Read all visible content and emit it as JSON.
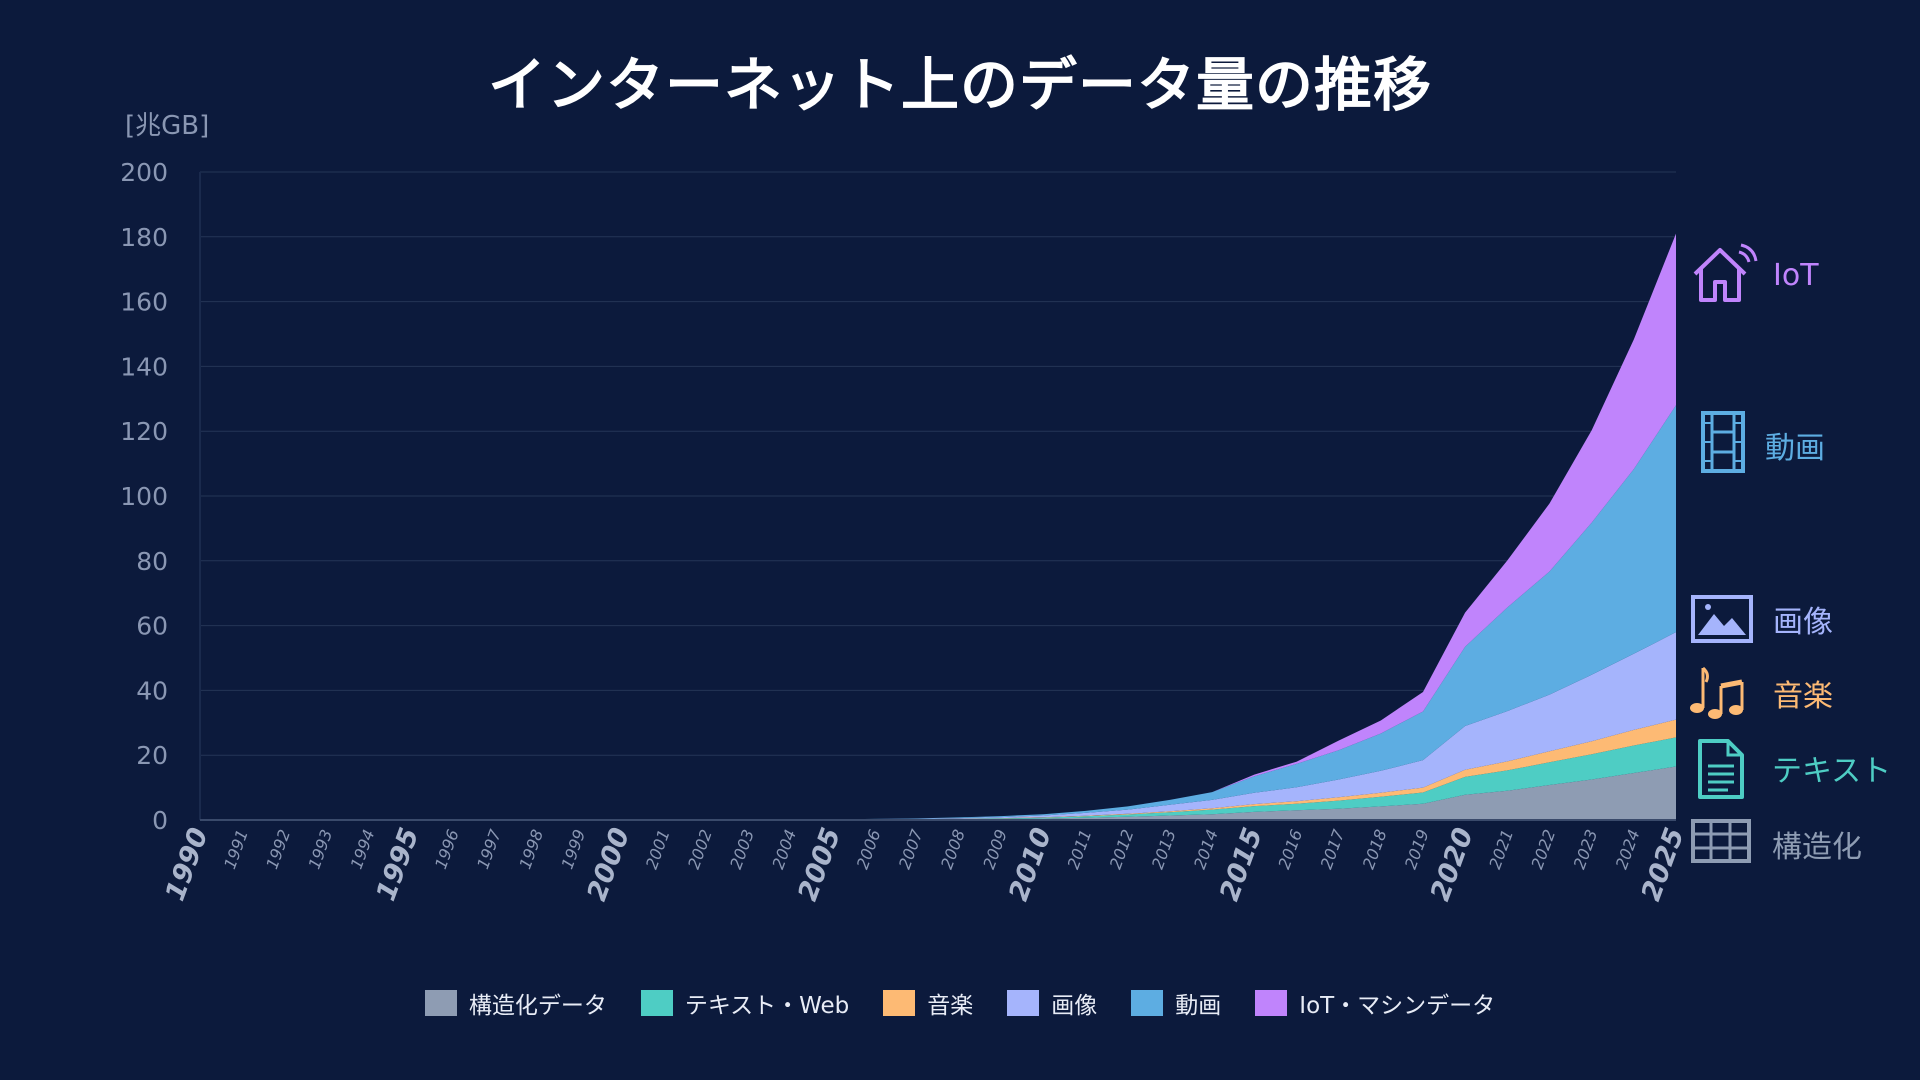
{
  "chart_data": {
    "type": "area",
    "stacked": true,
    "title": "インターネット上のデータ量の推移",
    "ylabel": "[兆GB]",
    "xlabel": "",
    "ylim": [
      0,
      200
    ],
    "yticks": [
      "0",
      "20",
      "40",
      "60",
      "80",
      "100",
      "120",
      "140",
      "160",
      "180",
      "200"
    ],
    "grid": true,
    "x": [
      "1990",
      "1991",
      "1992",
      "1993",
      "1994",
      "1995",
      "1996",
      "1997",
      "1998",
      "1999",
      "2000",
      "2001",
      "2002",
      "2003",
      "2004",
      "2005",
      "2006",
      "2007",
      "2008",
      "2009",
      "2010",
      "2011",
      "2012",
      "2013",
      "2014",
      "2015",
      "2016",
      "2017",
      "2018",
      "2019",
      "2020",
      "2021",
      "2022",
      "2023",
      "2024",
      "2025"
    ],
    "major_x": [
      "1990",
      "1995",
      "2000",
      "2005",
      "2010",
      "2015",
      "2020",
      "2025"
    ],
    "legend_position": "bottom",
    "series": [
      {
        "name": "構造化データ",
        "color": "#8e9cb3",
        "values": [
          0,
          0,
          0,
          0,
          0,
          0,
          0,
          0,
          0,
          0,
          0,
          0,
          0,
          0,
          0.05,
          0.08,
          0.1,
          0.15,
          0.2,
          0.3,
          0.45,
          0.7,
          1.0,
          1.4,
          1.8,
          2.5,
          3.0,
          3.5,
          4.2,
          5.0,
          7.8,
          9.0,
          10.8,
          12.5,
          14.5,
          16.5
        ]
      },
      {
        "name": "テキスト・Web",
        "color": "#4ecdc4",
        "values": [
          0,
          0,
          0,
          0,
          0,
          0,
          0,
          0,
          0,
          0,
          0.05,
          0.05,
          0.05,
          0.05,
          0.05,
          0.05,
          0.1,
          0.1,
          0.15,
          0.2,
          0.3,
          0.45,
          0.7,
          1.0,
          1.4,
          1.8,
          2.0,
          2.5,
          3.0,
          3.5,
          5.5,
          6.3,
          7.0,
          7.8,
          8.5,
          9.0
        ]
      },
      {
        "name": "音楽",
        "color": "#fdba74",
        "values": [
          0,
          0,
          0,
          0,
          0,
          0,
          0,
          0,
          0,
          0,
          0,
          0,
          0,
          0,
          0,
          0,
          0.02,
          0.05,
          0.05,
          0.1,
          0.1,
          0.15,
          0.2,
          0.3,
          0.4,
          0.6,
          0.8,
          1.0,
          1.2,
          1.5,
          2.2,
          2.8,
          3.4,
          4.0,
          4.8,
          5.5
        ]
      },
      {
        "name": "画像",
        "color": "#a5b4fc",
        "values": [
          0,
          0,
          0,
          0,
          0,
          0,
          0,
          0,
          0,
          0,
          0,
          0,
          0,
          0,
          0.05,
          0.05,
          0.08,
          0.1,
          0.2,
          0.3,
          0.55,
          0.9,
          1.3,
          2.0,
          2.6,
          3.5,
          4.3,
          5.5,
          6.8,
          8.5,
          13.5,
          15.5,
          17.5,
          20.5,
          23.5,
          27.0
        ]
      },
      {
        "name": "動画",
        "color": "#5dade2",
        "values": [
          0,
          0,
          0,
          0,
          0,
          0,
          0,
          0,
          0,
          0,
          0,
          0,
          0,
          0,
          0,
          0,
          0.05,
          0.1,
          0.2,
          0.3,
          0.4,
          0.6,
          1.0,
          1.5,
          2.4,
          5.1,
          7.2,
          9.0,
          11.5,
          15.0,
          24.5,
          32.0,
          38.0,
          47.0,
          57.0,
          70.0
        ]
      },
      {
        "name": "IoT・マシンデータ",
        "color": "#c084fc",
        "values": [
          0,
          0,
          0,
          0,
          0,
          0,
          0,
          0,
          0,
          0,
          0,
          0,
          0,
          0,
          0,
          0,
          0,
          0,
          0,
          0,
          0,
          0,
          0,
          0,
          0,
          0.5,
          0.7,
          3.0,
          4.0,
          6.0,
          10.5,
          14.5,
          21.0,
          28.5,
          40.0,
          53.0
        ]
      }
    ],
    "annotations": [
      {
        "series": "IoT・マシンデータ",
        "text": "IoT",
        "icon": "smart-home-icon"
      },
      {
        "series": "動画",
        "text": "動画",
        "icon": "film-strip-icon"
      },
      {
        "series": "画像",
        "text": "画像",
        "icon": "picture-icon"
      },
      {
        "series": "音楽",
        "text": "音楽",
        "icon": "music-notes-icon"
      },
      {
        "series": "テキスト・Web",
        "text": "テキスト",
        "icon": "document-icon"
      },
      {
        "series": "構造化データ",
        "text": "構造化",
        "icon": "grid-table-icon"
      }
    ]
  },
  "theme": {
    "background": "#0c1a3c",
    "grid": "#243556",
    "axis_text": "#8a97b3"
  }
}
